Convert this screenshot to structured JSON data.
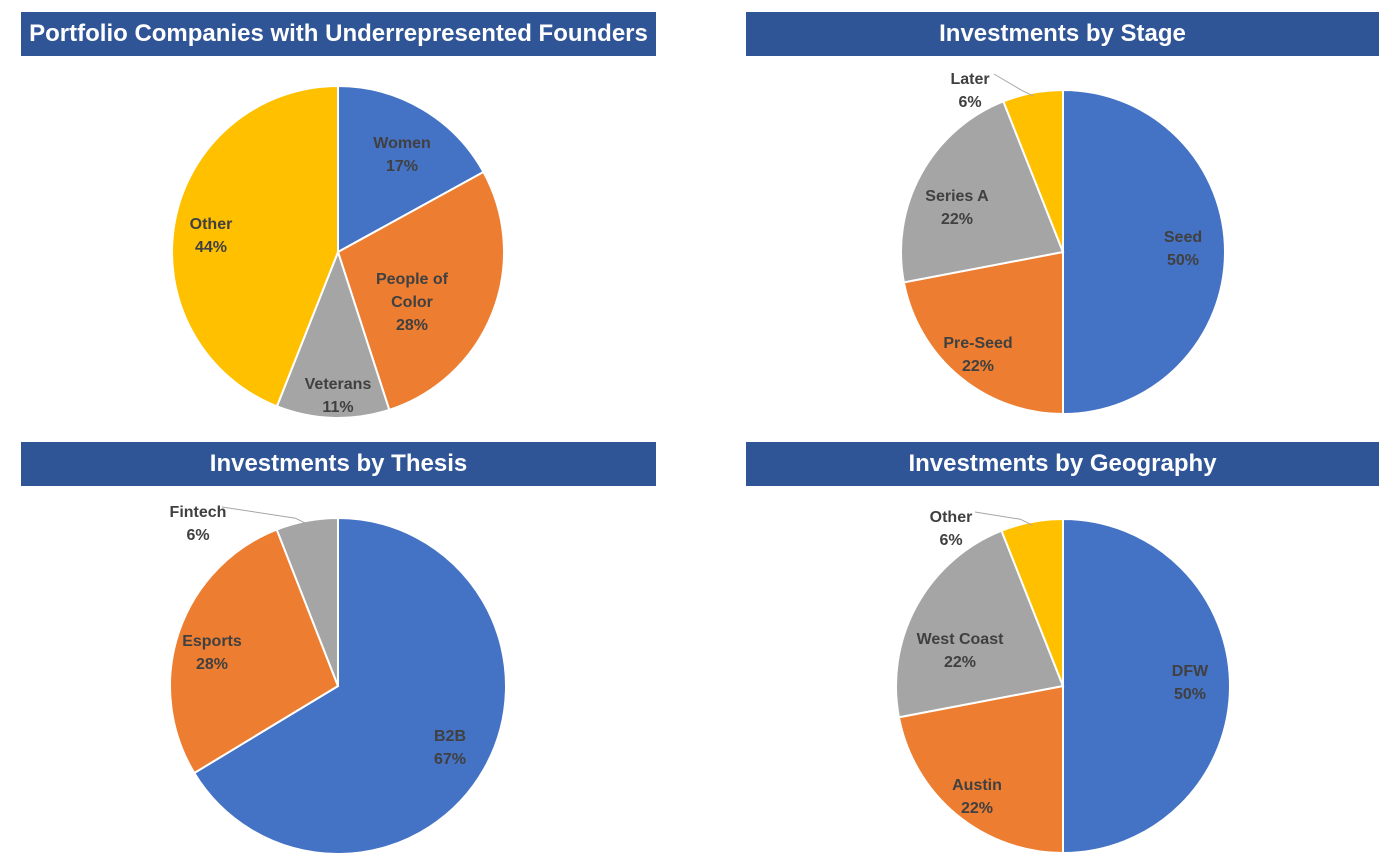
{
  "chart_data": [
    {
      "type": "pie",
      "title": "Portfolio Companies with Underrepresented Founders",
      "categories": [
        "Women",
        "People of Color",
        "Veterans",
        "Other"
      ],
      "values": [
        17,
        28,
        11,
        44
      ],
      "value_labels": [
        "17%",
        "28%",
        "11%",
        "44%"
      ],
      "colors": [
        "#4472c4",
        "#ed7d31",
        "#a5a5a5",
        "#ffc000"
      ]
    },
    {
      "type": "pie",
      "title": "Investments by Stage",
      "categories": [
        "Seed",
        "Pre-Seed",
        "Series A",
        "Later"
      ],
      "values": [
        50,
        22,
        22,
        6
      ],
      "value_labels": [
        "50%",
        "22%",
        "22%",
        "6%"
      ],
      "colors": [
        "#4472c4",
        "#ed7d31",
        "#a5a5a5",
        "#ffc000"
      ]
    },
    {
      "type": "pie",
      "title": "Investments by Thesis",
      "categories": [
        "B2B",
        "Esports",
        "Fintech"
      ],
      "values": [
        67,
        28,
        6
      ],
      "value_labels": [
        "67%",
        "28%",
        "6%"
      ],
      "colors": [
        "#4472c4",
        "#ed7d31",
        "#a5a5a5"
      ]
    },
    {
      "type": "pie",
      "title": "Investments by Geography",
      "categories": [
        "DFW",
        "Austin",
        "West Coast",
        "Other"
      ],
      "values": [
        50,
        22,
        22,
        6
      ],
      "value_labels": [
        "50%",
        "22%",
        "22%",
        "6%"
      ],
      "colors": [
        "#4472c4",
        "#ed7d31",
        "#a5a5a5",
        "#ffc000"
      ]
    }
  ]
}
